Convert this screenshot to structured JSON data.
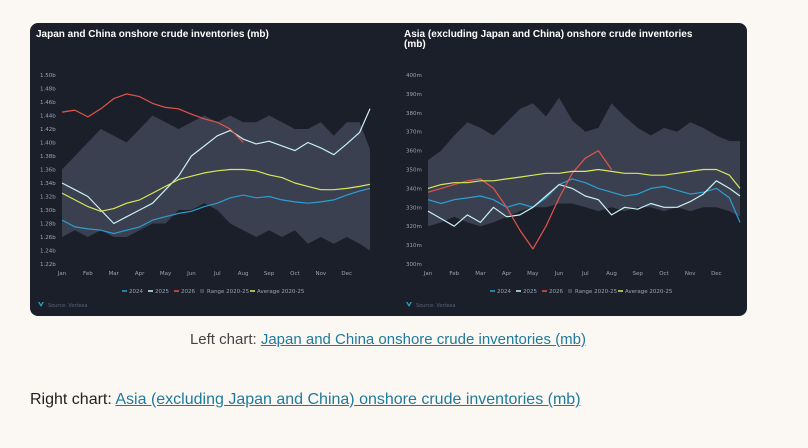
{
  "captions": {
    "left_prefix": "Left chart: ",
    "left_link": "Japan and China onshore crude inventories (mb)",
    "right_prefix": "Right chart: ",
    "right_link": "Asia (excluding Japan and China) onshore crude inventories (mb)"
  },
  "source_label": "Source: Vortexa",
  "colors": {
    "background": "#1b1f2a",
    "range_band": "#3f4757",
    "s2024": "#2a9fd0",
    "s2025": "#c8f1f2",
    "s2026": "#e5534b",
    "average": "#d8e85a"
  },
  "chart_data": [
    {
      "type": "line",
      "title": "Japan and China onshore crude inventories (mb)",
      "x_tick_labels": [
        "Jan",
        "Feb",
        "Mar",
        "Apr",
        "May",
        "Jun",
        "Jul",
        "Aug",
        "Sep",
        "Oct",
        "Nov",
        "Dec"
      ],
      "y_tick_labels": [
        "1.22b",
        "1.24b",
        "1.26b",
        "1.28b",
        "1.30b",
        "1.32b",
        "1.34b",
        "1.36b",
        "1.38b",
        "1.40b",
        "1.42b",
        "1.44b",
        "1.46b",
        "1.48b",
        "1.50b"
      ],
      "ylim": [
        1.22,
        1.5
      ],
      "xlim": [
        1,
        12.9
      ],
      "grid": false,
      "legend_position": "bottom",
      "range": {
        "name": "Range 2020-25",
        "x": [
          1,
          1.5,
          2,
          2.5,
          3,
          3.5,
          4,
          4.5,
          5,
          5.5,
          6,
          6.5,
          7,
          7.5,
          8,
          8.5,
          9,
          9.5,
          10,
          10.5,
          11,
          11.5,
          12,
          12.5,
          12.9
        ],
        "low": [
          1.26,
          1.27,
          1.26,
          1.27,
          1.26,
          1.26,
          1.27,
          1.28,
          1.28,
          1.3,
          1.3,
          1.31,
          1.3,
          1.28,
          1.27,
          1.26,
          1.27,
          1.26,
          1.27,
          1.25,
          1.26,
          1.25,
          1.26,
          1.25,
          1.24
        ],
        "high": [
          1.36,
          1.38,
          1.4,
          1.42,
          1.41,
          1.4,
          1.42,
          1.44,
          1.43,
          1.42,
          1.43,
          1.44,
          1.43,
          1.44,
          1.43,
          1.43,
          1.44,
          1.43,
          1.42,
          1.42,
          1.43,
          1.41,
          1.43,
          1.43,
          1.39
        ]
      },
      "series": [
        {
          "name": "2024",
          "x": [
            1,
            1.5,
            2,
            2.5,
            3,
            3.5,
            4,
            4.5,
            5,
            5.5,
            6,
            6.5,
            7,
            7.5,
            8,
            8.5,
            9,
            9.5,
            10,
            10.5,
            11,
            11.5,
            12,
            12.5,
            12.9
          ],
          "values": [
            1.285,
            1.275,
            1.272,
            1.27,
            1.265,
            1.27,
            1.275,
            1.285,
            1.29,
            1.295,
            1.298,
            1.305,
            1.31,
            1.318,
            1.322,
            1.318,
            1.32,
            1.315,
            1.312,
            1.31,
            1.312,
            1.315,
            1.322,
            1.328,
            1.332
          ]
        },
        {
          "name": "2025",
          "x": [
            1,
            1.5,
            2,
            2.5,
            3,
            3.5,
            4,
            4.5,
            5,
            5.5,
            6,
            6.5,
            7,
            7.5,
            8,
            8.5,
            9,
            9.5,
            10,
            10.5,
            11,
            11.5,
            12,
            12.5,
            12.9
          ],
          "values": [
            1.34,
            1.33,
            1.32,
            1.3,
            1.28,
            1.29,
            1.3,
            1.31,
            1.33,
            1.35,
            1.38,
            1.395,
            1.41,
            1.418,
            1.405,
            1.398,
            1.402,
            1.395,
            1.388,
            1.4,
            1.392,
            1.382,
            1.398,
            1.415,
            1.45
          ]
        },
        {
          "name": "2026",
          "x": [
            1,
            1.5,
            2,
            2.5,
            3,
            3.5,
            4,
            4.5,
            5,
            5.5,
            6,
            6.5,
            7,
            7.5,
            8
          ],
          "values": [
            1.445,
            1.448,
            1.438,
            1.45,
            1.465,
            1.472,
            1.468,
            1.458,
            1.452,
            1.45,
            1.442,
            1.435,
            1.43,
            1.42,
            1.4
          ]
        },
        {
          "name": "Average 2020-25",
          "x": [
            1,
            1.5,
            2,
            2.5,
            3,
            3.5,
            4,
            4.5,
            5,
            5.5,
            6,
            6.5,
            7,
            7.5,
            8,
            8.5,
            9,
            9.5,
            10,
            10.5,
            11,
            11.5,
            12,
            12.5,
            12.9
          ],
          "values": [
            1.325,
            1.315,
            1.305,
            1.298,
            1.302,
            1.31,
            1.315,
            1.325,
            1.335,
            1.345,
            1.35,
            1.355,
            1.358,
            1.36,
            1.36,
            1.358,
            1.352,
            1.348,
            1.34,
            1.335,
            1.33,
            1.33,
            1.332,
            1.335,
            1.338
          ]
        }
      ]
    },
    {
      "type": "line",
      "title": "Asia (excluding Japan and China) onshore crude inventories (mb)",
      "x_tick_labels": [
        "Jan",
        "Feb",
        "Mar",
        "Apr",
        "May",
        "Jun",
        "Jul",
        "Aug",
        "Sep",
        "Oct",
        "Nov",
        "Dec"
      ],
      "y_tick_labels": [
        "300m",
        "310m",
        "320m",
        "330m",
        "340m",
        "350m",
        "360m",
        "370m",
        "380m",
        "390m",
        "400m"
      ],
      "ylim": [
        300,
        400
      ],
      "xlim": [
        1,
        12.9
      ],
      "grid": false,
      "legend_position": "bottom",
      "range": {
        "name": "Range 2020-25",
        "x": [
          1,
          1.5,
          2,
          2.5,
          3,
          3.5,
          4,
          4.5,
          5,
          5.5,
          6,
          6.5,
          7,
          7.5,
          8,
          8.5,
          9,
          9.5,
          10,
          10.5,
          11,
          11.5,
          12,
          12.5,
          12.9
        ],
        "low": [
          320,
          322,
          325,
          322,
          320,
          322,
          325,
          328,
          330,
          330,
          332,
          332,
          330,
          328,
          330,
          328,
          330,
          330,
          328,
          330,
          328,
          330,
          330,
          328,
          325
        ],
        "high": [
          355,
          360,
          368,
          375,
          372,
          368,
          375,
          382,
          385,
          378,
          388,
          376,
          370,
          372,
          385,
          378,
          372,
          368,
          372,
          370,
          375,
          372,
          368,
          365,
          365
        ]
      },
      "series": [
        {
          "name": "2024",
          "x": [
            1,
            1.5,
            2,
            2.5,
            3,
            3.5,
            4,
            4.5,
            5,
            5.5,
            6,
            6.5,
            7,
            7.5,
            8,
            8.5,
            9,
            9.5,
            10,
            10.5,
            11,
            11.5,
            12,
            12.5,
            12.9
          ],
          "values": [
            334,
            332,
            334,
            335,
            336,
            334,
            330,
            332,
            330,
            335,
            342,
            345,
            343,
            340,
            338,
            336,
            337,
            340,
            341,
            339,
            337,
            338,
            340,
            335,
            322
          ]
        },
        {
          "name": "2025",
          "x": [
            1,
            1.5,
            2,
            2.5,
            3,
            3.5,
            4,
            4.5,
            5,
            5.5,
            6,
            6.5,
            7,
            7.5,
            8,
            8.5,
            9,
            9.5,
            10,
            10.5,
            11,
            11.5,
            12,
            12.5,
            12.9
          ],
          "values": [
            328,
            324,
            320,
            326,
            322,
            330,
            325,
            326,
            330,
            336,
            342,
            340,
            336,
            334,
            326,
            330,
            329,
            332,
            330,
            330,
            333,
            337,
            344,
            340,
            336
          ]
        },
        {
          "name": "2026",
          "x": [
            1,
            1.5,
            2,
            2.5,
            3,
            3.5,
            4,
            4.5,
            5,
            5.5,
            6,
            6.5,
            7,
            7.5,
            8
          ],
          "values": [
            338,
            340,
            342,
            344,
            345,
            340,
            330,
            318,
            308,
            320,
            335,
            348,
            356,
            360,
            350
          ]
        },
        {
          "name": "Average 2020-25",
          "x": [
            1,
            1.5,
            2,
            2.5,
            3,
            3.5,
            4,
            4.5,
            5,
            5.5,
            6,
            6.5,
            7,
            7.5,
            8,
            8.5,
            9,
            9.5,
            10,
            10.5,
            11,
            11.5,
            12,
            12.5,
            12.9
          ],
          "values": [
            340,
            342,
            343,
            343,
            344,
            344,
            345,
            346,
            347,
            348,
            348,
            349,
            349,
            350,
            349,
            348,
            348,
            347,
            347,
            348,
            349,
            350,
            350,
            347,
            340
          ]
        }
      ]
    }
  ]
}
